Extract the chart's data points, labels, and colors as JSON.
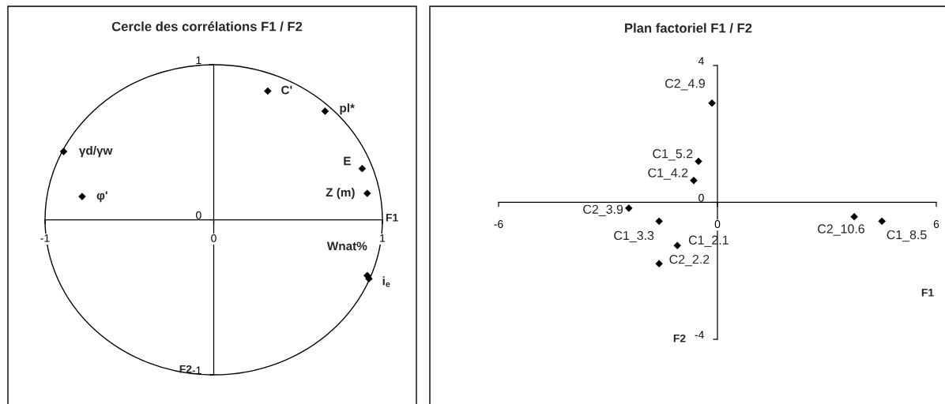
{
  "chart_data": [
    {
      "type": "scatter",
      "title": "Cercle des corrélations F1 / F2",
      "xlabel": "F1",
      "ylabel": "F2",
      "xlim": [
        -1,
        1
      ],
      "ylim": [
        -1,
        1
      ],
      "xticks": [
        -1,
        0,
        1
      ],
      "yticks": [
        -1,
        0,
        1
      ],
      "marker": "diamond",
      "series": [
        {
          "name": "C'",
          "color": "#000000",
          "x": [
            0.32
          ],
          "values": [
            0.83
          ]
        },
        {
          "name": "pl*",
          "color": "#000000",
          "x": [
            0.66
          ],
          "values": [
            0.7
          ]
        },
        {
          "name": "γd/γw",
          "color": "#000000",
          "x": [
            -0.89
          ],
          "values": [
            0.44
          ]
        },
        {
          "name": "E",
          "color": "#000000",
          "x": [
            0.88
          ],
          "values": [
            0.33
          ]
        },
        {
          "name": "Z (m)",
          "color": "#000000",
          "x": [
            0.91
          ],
          "values": [
            0.17
          ]
        },
        {
          "name": "φ'",
          "color": "#000000",
          "x": [
            -0.78
          ],
          "values": [
            0.15
          ]
        },
        {
          "name": "Wnat%",
          "color": "#000000",
          "x": [
            0.91
          ],
          "values": [
            -0.36
          ]
        },
        {
          "name": "i$_{e}$",
          "color": "#000000",
          "x": [
            0.92
          ],
          "values": [
            -0.38
          ]
        }
      ]
    },
    {
      "type": "scatter",
      "title": "Plan factoriel F1 / F2",
      "xlabel": "F1",
      "ylabel": "F2",
      "xlim": [
        -6,
        6
      ],
      "ylim": [
        -4,
        4
      ],
      "xticks": [
        -6,
        0,
        6
      ],
      "yticks": [
        -4,
        0,
        4
      ],
      "marker": "diamond",
      "series": [
        {
          "name": "C2_4.9",
          "color": "#000000",
          "x": [
            -0.15
          ],
          "values": [
            2.9
          ]
        },
        {
          "name": "C1_5.2",
          "color": "#000000",
          "x": [
            -0.52
          ],
          "values": [
            1.2
          ]
        },
        {
          "name": "C1_4.2",
          "color": "#000000",
          "x": [
            -0.65
          ],
          "values": [
            0.64
          ]
        },
        {
          "name": "C2_3.9",
          "color": "#000000",
          "x": [
            -2.43
          ],
          "values": [
            -0.17
          ]
        },
        {
          "name": "C1_3.3",
          "color": "#000000",
          "x": [
            -1.6
          ],
          "values": [
            -0.55
          ]
        },
        {
          "name": "C1_2.1",
          "color": "#000000",
          "x": [
            -1.1
          ],
          "values": [
            -1.26
          ]
        },
        {
          "name": "C2_2.2",
          "color": "#000000",
          "x": [
            -1.6
          ],
          "values": [
            -1.79
          ]
        },
        {
          "name": "C2_10.6",
          "color": "#000000",
          "x": [
            3.75
          ],
          "values": [
            -0.42
          ]
        },
        {
          "name": "C1_8.5",
          "color": "#000000",
          "x": [
            4.51
          ],
          "values": [
            -0.55
          ]
        }
      ]
    }
  ]
}
